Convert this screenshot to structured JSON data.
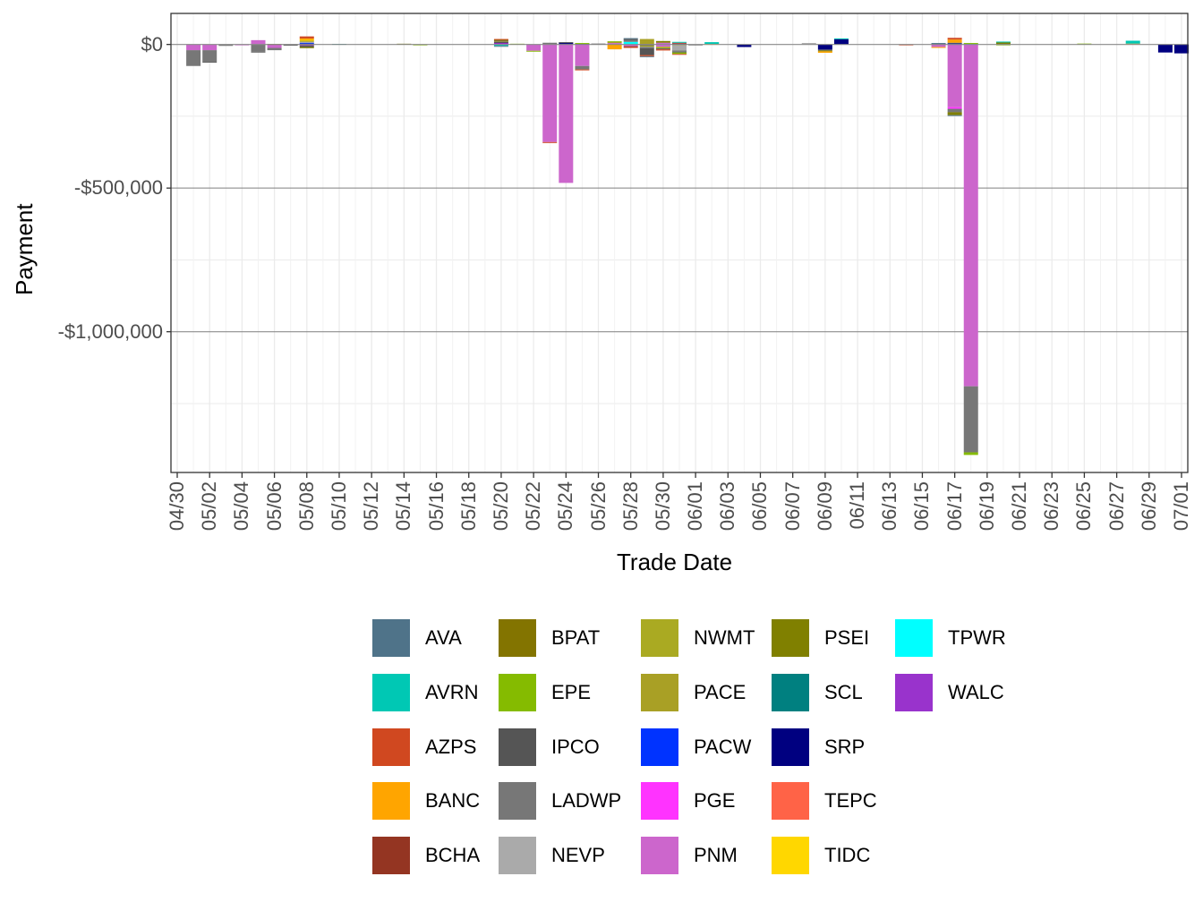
{
  "chart_data": {
    "type": "bar",
    "stacked": true,
    "title": "",
    "xlabel": "Trade Date",
    "ylabel": "Payment",
    "ylim": [
      -1490000,
      108000
    ],
    "y_ticks": [
      {
        "value": 0,
        "label": "$0"
      },
      {
        "value": -500000,
        "label": "-$500,000"
      },
      {
        "value": -1000000,
        "label": "-$1,000,000"
      }
    ],
    "x_ticks": [
      "04/30",
      "05/02",
      "05/04",
      "05/06",
      "05/08",
      "05/10",
      "05/12",
      "05/14",
      "05/16",
      "05/18",
      "05/20",
      "05/22",
      "05/24",
      "05/26",
      "05/28",
      "05/30",
      "06/01",
      "06/03",
      "06/05",
      "06/07",
      "06/09",
      "06/11",
      "06/13",
      "06/15",
      "06/17",
      "06/19",
      "06/21",
      "06/23",
      "06/25",
      "06/27",
      "06/29",
      "07/01"
    ],
    "grid": true,
    "legend_position": "bottom",
    "legend": [
      {
        "name": "AVA",
        "color": "#4F7389"
      },
      {
        "name": "AVRN",
        "color": "#00C8B4"
      },
      {
        "name": "AZPS",
        "color": "#D04820"
      },
      {
        "name": "BANC",
        "color": "#FFA500"
      },
      {
        "name": "BCHA",
        "color": "#943522"
      },
      {
        "name": "BPAT",
        "color": "#837400"
      },
      {
        "name": "EPE",
        "color": "#85BB00"
      },
      {
        "name": "IPCO",
        "color": "#555555"
      },
      {
        "name": "LADWP",
        "color": "#777777"
      },
      {
        "name": "NEVP",
        "color": "#AAAAAA"
      },
      {
        "name": "NWMT",
        "color": "#AAAA22"
      },
      {
        "name": "PACE",
        "color": "#A9A025"
      },
      {
        "name": "PACW",
        "color": "#0033FF"
      },
      {
        "name": "PGE",
        "color": "#FF33FF"
      },
      {
        "name": "PNM",
        "color": "#CC66CC"
      },
      {
        "name": "PSEI",
        "color": "#808000"
      },
      {
        "name": "SCL",
        "color": "#008080"
      },
      {
        "name": "SRP",
        "color": "#000080"
      },
      {
        "name": "TEPC",
        "color": "#FF6347"
      },
      {
        "name": "TIDC",
        "color": "#FFD700"
      },
      {
        "name": "TPWR",
        "color": "#00FFFF"
      },
      {
        "name": "WALC",
        "color": "#9933CC"
      }
    ],
    "bars": [
      {
        "date": "05/01",
        "positive": [],
        "negative": [
          [
            "PNM",
            -20000
          ],
          [
            "LADWP",
            -55000
          ]
        ]
      },
      {
        "date": "05/02",
        "positive": [],
        "negative": [
          [
            "PNM",
            -20000
          ],
          [
            "LADWP",
            -40000
          ],
          [
            "IPCO",
            -3000
          ]
        ]
      },
      {
        "date": "05/03",
        "positive": [],
        "negative": [
          [
            "LADWP",
            -5000
          ]
        ]
      },
      {
        "date": "05/04",
        "positive": [],
        "negative": [
          [
            "PNM",
            -3000
          ]
        ]
      },
      {
        "date": "05/05",
        "positive": [
          [
            "PNM",
            15000
          ]
        ],
        "negative": [
          [
            "LADWP",
            -25000
          ],
          [
            "IPCO",
            -3000
          ]
        ]
      },
      {
        "date": "05/06",
        "positive": [
          [
            "BPAT",
            2000
          ]
        ],
        "negative": [
          [
            "PNM",
            -12000
          ],
          [
            "LADWP",
            -8000
          ]
        ]
      },
      {
        "date": "05/07",
        "positive": [],
        "negative": [
          [
            "IPCO",
            -4000
          ]
        ]
      },
      {
        "date": "05/08",
        "positive": [
          [
            "SRP",
            3000
          ],
          [
            "PACW",
            3000
          ],
          [
            "NEVP",
            3000
          ],
          [
            "PACE",
            4000
          ],
          [
            "TIDC",
            3000
          ],
          [
            "BANC",
            5000
          ],
          [
            "AZPS",
            7000
          ]
        ],
        "negative": [
          [
            "PGE",
            -3000
          ],
          [
            "IPCO",
            -6000
          ],
          [
            "PSEI",
            -4000
          ]
        ]
      },
      {
        "date": "05/10",
        "positive": [
          [
            "SCL",
            2000
          ]
        ],
        "negative": []
      },
      {
        "date": "05/14",
        "positive": [
          [
            "PSEI",
            2500
          ]
        ],
        "negative": []
      },
      {
        "date": "05/15",
        "positive": [],
        "negative": [
          [
            "EPE",
            -2000
          ]
        ]
      },
      {
        "date": "05/20",
        "positive": [
          [
            "TPWR",
            2000
          ],
          [
            "PGE",
            2000
          ],
          [
            "SRP",
            3000
          ],
          [
            "PACE",
            3000
          ],
          [
            "LADWP",
            3000
          ],
          [
            "BPAT",
            3000
          ],
          [
            "AZPS",
            3000
          ]
        ],
        "negative": [
          [
            "AVRN",
            -5000
          ],
          [
            "AVA",
            -3000
          ]
        ]
      },
      {
        "date": "05/21",
        "positive": [
          [
            "EPE",
            2500
          ]
        ],
        "negative": []
      },
      {
        "date": "05/22",
        "positive": [],
        "negative": [
          [
            "PNM",
            -22000
          ],
          [
            "EPE",
            -3000
          ]
        ]
      },
      {
        "date": "05/23",
        "positive": [
          [
            "LADWP",
            6000
          ]
        ],
        "negative": [
          [
            "PNM",
            -340000
          ],
          [
            "AZPS",
            -2000
          ]
        ]
      },
      {
        "date": "05/24",
        "positive": [
          [
            "SRP",
            6000
          ],
          [
            "IPCO",
            2000
          ]
        ],
        "negative": [
          [
            "PNM",
            -482000
          ]
        ]
      },
      {
        "date": "05/25",
        "positive": [
          [
            "SRP",
            3000
          ],
          [
            "EPE",
            2000
          ]
        ],
        "negative": [
          [
            "PNM",
            -75000
          ],
          [
            "LADWP",
            -12000
          ],
          [
            "AZPS",
            -3000
          ]
        ]
      },
      {
        "date": "05/26",
        "positive": [
          [
            "IPCO",
            3000
          ]
        ],
        "negative": []
      },
      {
        "date": "05/27",
        "positive": [
          [
            "PNM",
            5000
          ],
          [
            "PACE",
            4000
          ],
          [
            "EPE",
            2000
          ]
        ],
        "negative": [
          [
            "BANC",
            -17000
          ]
        ]
      },
      {
        "date": "05/28",
        "positive": [
          [
            "TPWR",
            9000
          ],
          [
            "LADWP",
            6000
          ],
          [
            "IPCO",
            4000
          ],
          [
            "AVA",
            3000
          ]
        ],
        "negative": [
          [
            "PNM",
            -6000
          ],
          [
            "BCHA",
            -3000
          ],
          [
            "AZPS",
            -2000
          ]
        ]
      },
      {
        "date": "05/29",
        "positive": [
          [
            "PACE",
            19000
          ]
        ],
        "negative": [
          [
            "SRP",
            -3000
          ],
          [
            "NWMT",
            -5000
          ],
          [
            "LADWP",
            -5000
          ],
          [
            "IPCO",
            -24000
          ],
          [
            "AZPS",
            -4000
          ],
          [
            "AVA",
            -2000
          ]
        ]
      },
      {
        "date": "05/30",
        "positive": [
          [
            "PNM",
            6000
          ],
          [
            "PSEI",
            6000
          ]
        ],
        "negative": [
          [
            "PNM",
            -8000
          ],
          [
            "NWMT",
            -6000
          ],
          [
            "IPCO",
            -3000
          ],
          [
            "AZPS",
            -4000
          ]
        ]
      },
      {
        "date": "05/31",
        "positive": [
          [
            "SRP",
            3000
          ],
          [
            "AZPS",
            3000
          ],
          [
            "AVRN",
            3000
          ]
        ],
        "negative": [
          [
            "PACE",
            -3000
          ],
          [
            "NEVP",
            -18000
          ],
          [
            "LADWP",
            -4000
          ],
          [
            "IPCO",
            -3000
          ],
          [
            "EPE",
            -5000
          ],
          [
            "AZPS",
            -3000
          ]
        ]
      },
      {
        "date": "06/01",
        "positive": [],
        "negative": [
          [
            "IPCO",
            -3000
          ]
        ]
      },
      {
        "date": "06/02",
        "positive": [
          [
            "TIDC",
            2000
          ],
          [
            "AVRN",
            6000
          ]
        ],
        "negative": []
      },
      {
        "date": "06/04",
        "positive": [],
        "negative": [
          [
            "SRP",
            -9000
          ]
        ]
      },
      {
        "date": "06/08",
        "positive": [
          [
            "NEVP",
            5000
          ]
        ],
        "negative": []
      },
      {
        "date": "06/09",
        "positive": [],
        "negative": [
          [
            "SRP",
            -18000
          ],
          [
            "LADWP",
            -3000
          ],
          [
            "PSEI",
            -3000
          ],
          [
            "BANC",
            -5000
          ]
        ]
      },
      {
        "date": "06/10",
        "positive": [
          [
            "SRP",
            19000
          ],
          [
            "AVRN",
            2000
          ]
        ],
        "negative": []
      },
      {
        "date": "06/14",
        "positive": [],
        "negative": [
          [
            "AZPS",
            -3000
          ]
        ]
      },
      {
        "date": "06/16",
        "positive": [
          [
            "IPCO",
            3000
          ],
          [
            "AVA",
            2000
          ]
        ],
        "negative": [
          [
            "PNM",
            -9000
          ],
          [
            "BANC",
            -3000
          ]
        ]
      },
      {
        "date": "06/17",
        "positive": [
          [
            "SRP",
            2000
          ],
          [
            "PACW",
            2000
          ],
          [
            "IPCO",
            2000
          ],
          [
            "BANC",
            11000
          ],
          [
            "AZPS",
            6000
          ]
        ],
        "negative": [
          [
            "PNM",
            -218000
          ],
          [
            "PGE",
            -6000
          ],
          [
            "LADWP",
            -12000
          ],
          [
            "PSEI",
            -10000
          ],
          [
            "AVA",
            -2000
          ]
        ]
      },
      {
        "date": "06/18",
        "positive": [
          [
            "AVRN",
            3000
          ],
          [
            "EPE",
            2000
          ]
        ],
        "negative": [
          [
            "PNM",
            -1190000
          ],
          [
            "LADWP",
            -230000
          ],
          [
            "EPE",
            -9000
          ]
        ]
      },
      {
        "date": "06/20",
        "positive": [
          [
            "PSEI",
            8000
          ],
          [
            "AVRN",
            2000
          ]
        ],
        "negative": [
          [
            "EPE",
            -3000
          ]
        ]
      },
      {
        "date": "06/25",
        "positive": [
          [
            "EPE",
            3000
          ]
        ],
        "negative": []
      },
      {
        "date": "06/28",
        "positive": [
          [
            "BANC",
            3000
          ],
          [
            "AVRN",
            10000
          ]
        ],
        "negative": []
      },
      {
        "date": "06/30",
        "positive": [],
        "negative": [
          [
            "SRP",
            -28000
          ]
        ]
      },
      {
        "date": "07/01",
        "positive": [],
        "negative": [
          [
            "SRP",
            -31000
          ]
        ]
      }
    ]
  }
}
